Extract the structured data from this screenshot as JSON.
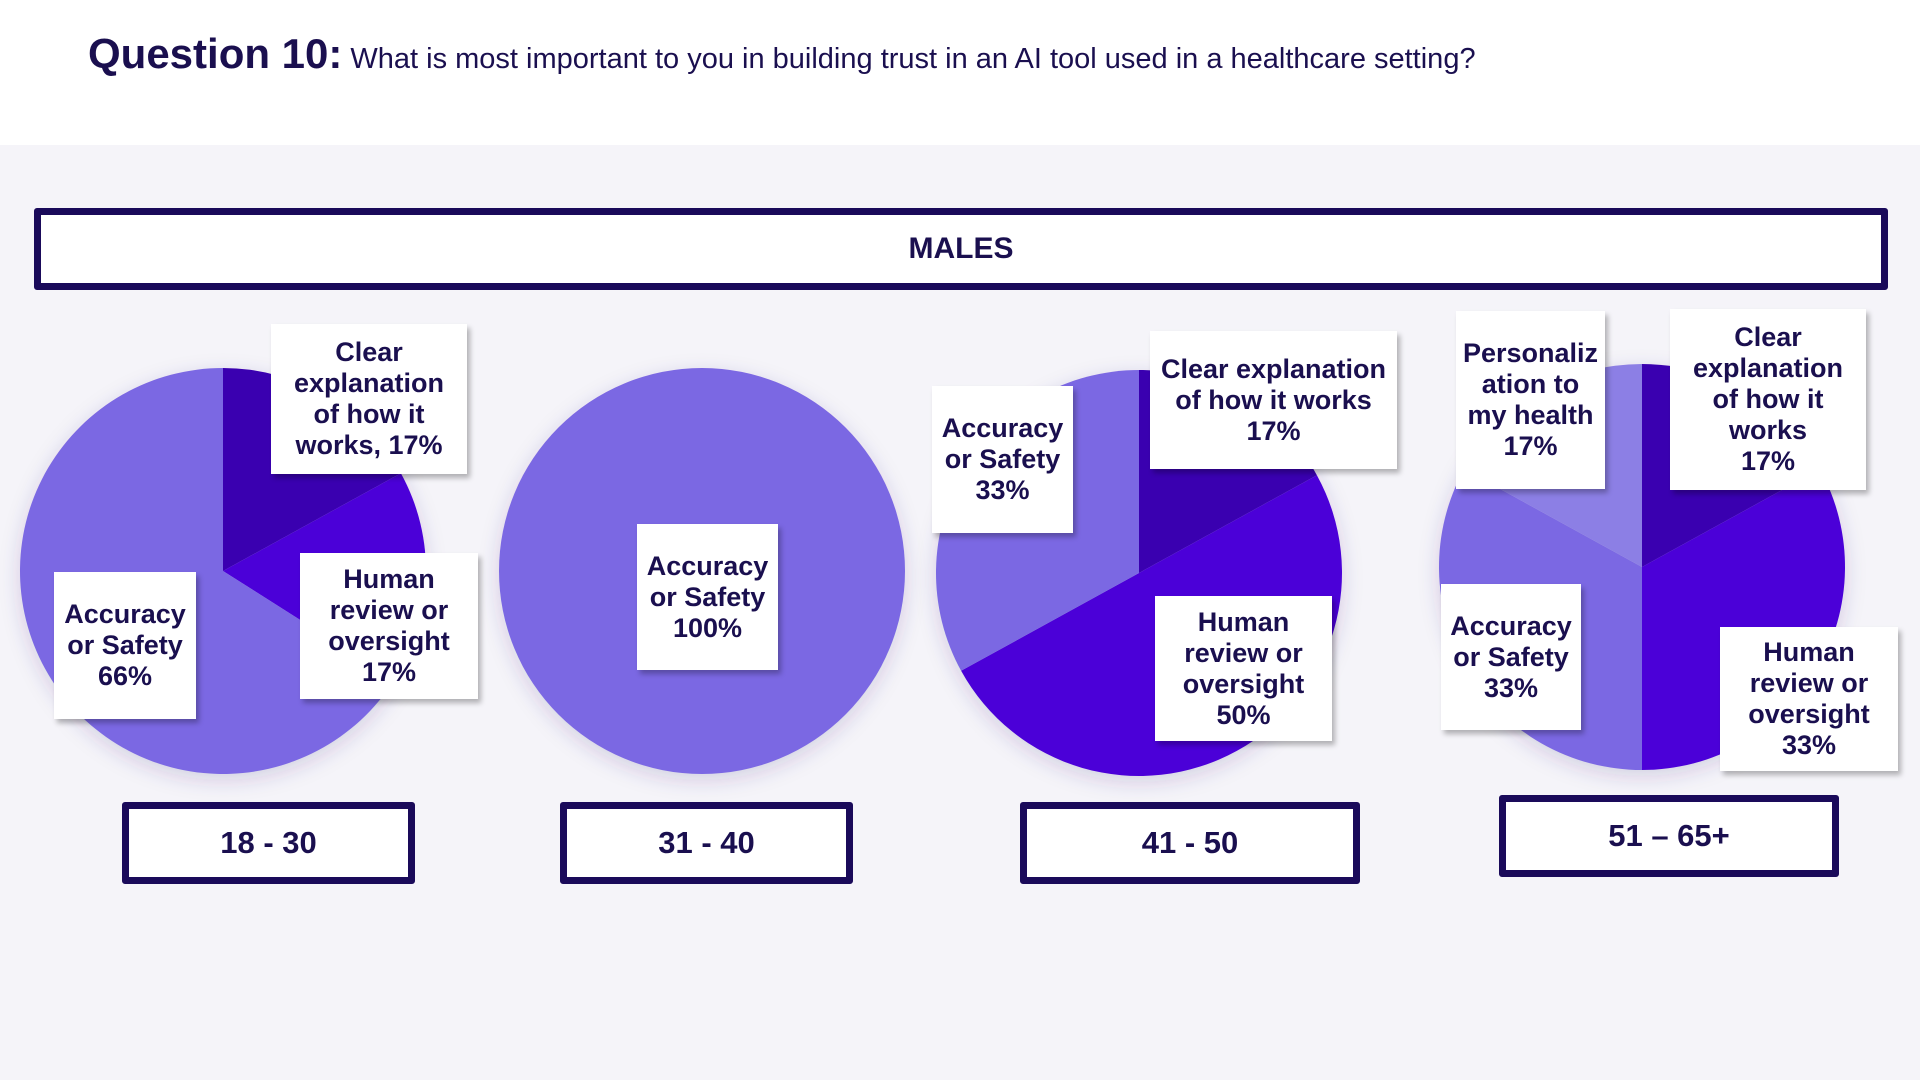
{
  "header": {
    "question_label": "Question 10:",
    "question_text": "What is most important to you in building trust in an AI tool used in a healthcare setting?"
  },
  "group_label": "MALES",
  "colors": {
    "accuracy": "#7b68e3",
    "clear": "#3a00b0",
    "human": "#4b00d8",
    "personalization": "#8c7fe5",
    "text": "#1a0f4f",
    "border": "#1a0a5a"
  },
  "chart_data": [
    {
      "type": "pie",
      "title": "18 - 30",
      "slices": [
        {
          "key": "clear",
          "category": "Clear explanation of how it works",
          "value": 17,
          "label": "Clear\nexplanation\nof how it\nworks, 17%"
        },
        {
          "key": "human",
          "category": "Human review or oversight",
          "value": 17,
          "label": "Human\nreview or\noversight\n17%"
        },
        {
          "key": "accuracy",
          "category": "Accuracy or Safety",
          "value": 66,
          "label": "Accuracy\nor Safety\n66%"
        }
      ]
    },
    {
      "type": "pie",
      "title": "31 - 40",
      "slices": [
        {
          "key": "accuracy",
          "category": "Accuracy or Safety",
          "value": 100,
          "label": "Accuracy\nor Safety\n100%"
        }
      ]
    },
    {
      "type": "pie",
      "title": "41 - 50",
      "slices": [
        {
          "key": "clear",
          "category": "Clear explanation of how it works",
          "value": 17,
          "label": "Clear explanation\nof how it works\n17%"
        },
        {
          "key": "human",
          "category": "Human review or oversight",
          "value": 50,
          "label": "Human\nreview or\noversight\n50%"
        },
        {
          "key": "accuracy",
          "category": "Accuracy or Safety",
          "value": 33,
          "label": "Accuracy\nor Safety\n33%"
        }
      ]
    },
    {
      "type": "pie",
      "title": "51 – 65+",
      "slices": [
        {
          "key": "clear",
          "category": "Clear explanation of how it works",
          "value": 17,
          "label": "Clear\nexplanation\nof how it\nworks\n17%"
        },
        {
          "key": "human",
          "category": "Human review or oversight",
          "value": 33,
          "label": "Human\nreview or\noversight\n33%"
        },
        {
          "key": "accuracy",
          "category": "Accuracy or Safety",
          "value": 33,
          "label": "Accuracy\nor Safety\n33%"
        },
        {
          "key": "personalization",
          "category": "Personalization to my health",
          "value": 17,
          "label": "Personaliz\nation to\nmy health\n17%"
        }
      ]
    }
  ]
}
